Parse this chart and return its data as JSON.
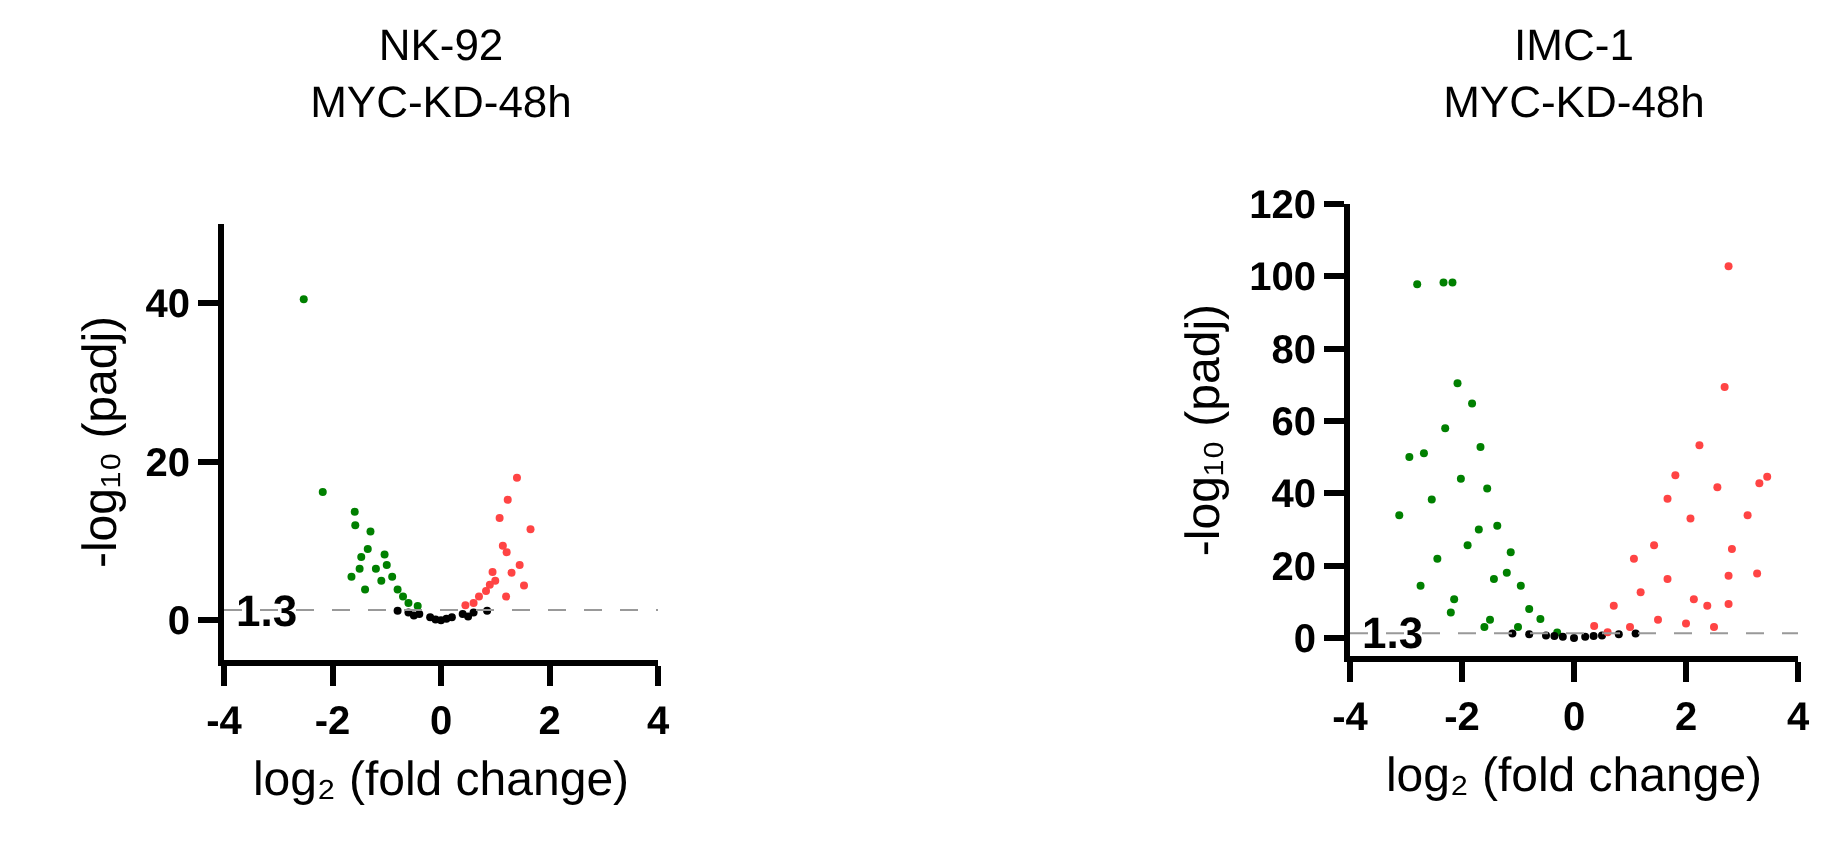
{
  "chart_data": [
    {
      "type": "scatter",
      "title": "NK-92\nMYC-KD-48h",
      "xlabel": "log₂ (fold change)",
      "ylabel": "-log₁₀ (padj)",
      "xlim": [
        -4,
        4
      ],
      "xticks": [
        -4,
        -2,
        0,
        2,
        4
      ],
      "ylim": [
        -5,
        50
      ],
      "yticks": [
        0,
        20,
        40
      ],
      "grid": false,
      "marker": "circle",
      "ref_lines": [
        {
          "axis": "y",
          "value": 1.3,
          "label": "1.3",
          "color": "#999999",
          "line_style": "dashed"
        }
      ],
      "series": [
        {
          "color": "#008000",
          "x": [
            -2.53,
            -2.18,
            -1.59,
            -1.58,
            -1.47,
            -1.65,
            -1.4,
            -1.04,
            -0.8,
            -0.43,
            -1.3,
            -1.2,
            -1.1,
            -0.9,
            -0.7,
            -0.6,
            -1.5,
            -1.35,
            -1.0
          ],
          "values": [
            40.5,
            16.2,
            13.7,
            12,
            8,
            5.5,
            3.9,
            8.3,
            3.9,
            1.8,
            11.2,
            6.5,
            5,
            5.5,
            3,
            2.2,
            6.5,
            9,
            7
          ]
        },
        {
          "color": "#000000",
          "x": [
            -0.8,
            -0.6,
            -0.4,
            -0.2,
            0,
            0.2,
            0.4,
            0.6,
            0.85,
            -0.5,
            0.5,
            -0.1,
            0.1
          ],
          "values": [
            1.2,
            1,
            0.8,
            0.4,
            0,
            0.4,
            0.8,
            1,
            1.2,
            0.6,
            0.5,
            0.1,
            0.2
          ]
        },
        {
          "color": "#ff4444",
          "x": [
            1.4,
            1.65,
            1.23,
            1.08,
            1.21,
            1.53,
            0.95,
            0.45,
            0.83,
            1.14,
            0.7,
            1.0,
            1.3,
            1.45,
            0.6,
            1.2,
            0.9
          ],
          "values": [
            18,
            11.5,
            15.2,
            12.9,
            8.6,
            4.4,
            6.1,
            1.9,
            3.7,
            9.4,
            3,
            5,
            6,
            7,
            2.2,
            3,
            4.5
          ]
        }
      ]
    },
    {
      "type": "scatter",
      "title": "IMC-1\nMYC-KD-48h",
      "xlabel": "log₂ (fold change)",
      "ylabel": "-log₁₀ (padj)",
      "xlim": [
        -4,
        4
      ],
      "xticks": [
        -4,
        -2,
        0,
        2,
        4
      ],
      "ylim": [
        -5,
        120
      ],
      "yticks": [
        0,
        20,
        40,
        60,
        80,
        100,
        120
      ],
      "grid": false,
      "marker": "circle",
      "ref_lines": [
        {
          "axis": "y",
          "value": 1.3,
          "label": "1.3",
          "color": "#999999",
          "line_style": "dashed"
        }
      ],
      "series": [
        {
          "color": "#008000",
          "x": [
            -2.8,
            -2.33,
            -2.17,
            -2.08,
            -1.82,
            -2.3,
            -2.94,
            -2.68,
            -1.67,
            -3.12,
            -2.54,
            -2.74,
            -2.44,
            -2.02,
            -1.55,
            -2.2,
            -1.37,
            -1.13,
            -0.95,
            -0.6,
            -0.3,
            -1.9,
            -2.14,
            -1.43,
            -1.7,
            -1.2,
            -0.8,
            -1.5,
            -1.0,
            -1.6
          ],
          "values": [
            97.8,
            98.3,
            98.3,
            70.4,
            64.8,
            58,
            50,
            51.1,
            52.8,
            33.9,
            38.3,
            14.4,
            21.9,
            44,
            41.3,
            7,
            31,
            23.7,
            14.4,
            5.2,
            1.5,
            25.6,
            10.7,
            16.3,
            30,
            18,
            8,
            5,
            3,
            3
          ]
        },
        {
          "color": "#000000",
          "x": [
            -1.1,
            -0.8,
            -0.5,
            -0.2,
            0,
            0.2,
            0.5,
            0.8,
            1.1,
            -0.35,
            0.35
          ],
          "values": [
            1.2,
            1,
            0.7,
            0.3,
            0,
            0.3,
            0.7,
            1,
            1.2,
            0.5,
            0.5
          ]
        },
        {
          "color": "#ff4444",
          "x": [
            2.76,
            2.69,
            2.24,
            3.45,
            3.31,
            1.81,
            2.56,
            1.67,
            3.1,
            2.08,
            1.43,
            2.82,
            1.07,
            2.76,
            3.27,
            2.76,
            2.14,
            0.71,
            0.36,
            1.67,
            2.38,
            1.19,
            1.5,
            2.0,
            2.5,
            1.0,
            0.6
          ],
          "values": [
            102.8,
            69.4,
            53.3,
            44.6,
            42.8,
            45,
            41.7,
            38.5,
            33.9,
            33,
            25.6,
            24.6,
            21.9,
            17.2,
            17.8,
            9.4,
            10.7,
            8.9,
            3.3,
            16.3,
            8.9,
            12.6,
            5,
            4,
            3,
            3,
            1.6
          ]
        }
      ]
    }
  ]
}
